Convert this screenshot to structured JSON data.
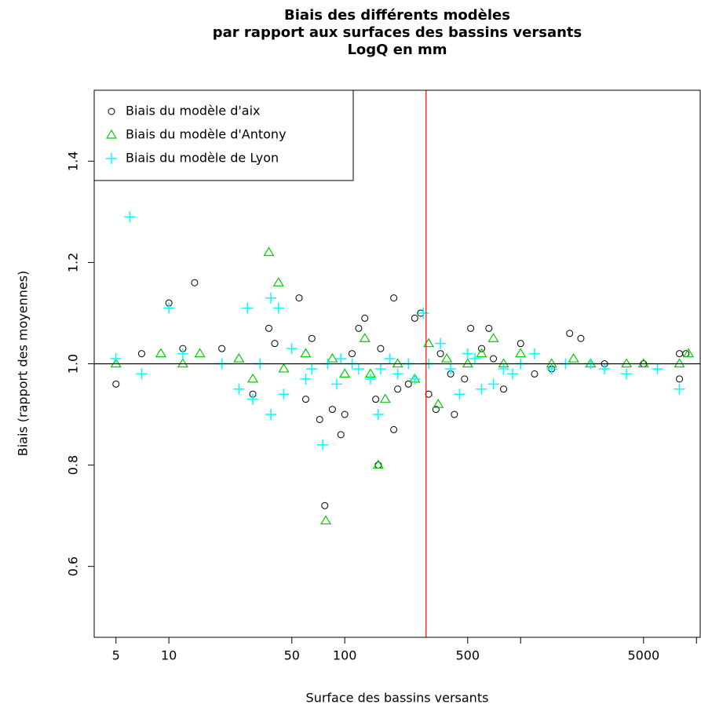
{
  "chart_data": {
    "type": "scatter",
    "title": [
      "Biais des différents modèles",
      "par rapport aux surfaces des bassins versants",
      "LogQ en mm"
    ],
    "x_label": "Surface des bassins versants",
    "y_label": "Biais (rapport des moyennes)",
    "x_scale": "log",
    "xlim": [
      3.76,
      10500
    ],
    "ylim": [
      0.46,
      1.54
    ],
    "xticks": [
      5,
      10,
      50,
      100,
      500,
      {
        "value": 1000,
        "label": null
      },
      5000,
      {
        "value": 10000,
        "label": null
      }
    ],
    "yticks": [
      0.6,
      0.8,
      {
        "value": 1,
        "label": "1.0"
      },
      1.2,
      1.4
    ],
    "legend": "top-left",
    "reference_lines": [
      {
        "axis": "x",
        "value": 290,
        "color": "#ff0000"
      },
      {
        "axis": "y",
        "value": 1,
        "color": "#000000"
      }
    ],
    "series": [
      {
        "name": "Biais du modèle d'aix",
        "marker": "circle",
        "color": "#000000",
        "x": [
          5,
          10,
          14,
          37,
          55,
          77,
          72,
          85,
          95,
          120,
          130,
          150,
          155,
          190,
          190,
          250,
          270,
          300,
          330,
          420,
          520,
          660,
          1000,
          1900,
          2200,
          5000,
          8000,
          8700,
          8000,
          7,
          12,
          20,
          30,
          60,
          100,
          200,
          400,
          600,
          800,
          1500,
          3000,
          40,
          65,
          110,
          160,
          230,
          350,
          480,
          700,
          1200
        ],
        "values": [
          0.96,
          1.12,
          1.16,
          1.07,
          1.13,
          0.72,
          0.89,
          0.91,
          0.86,
          1.07,
          1.09,
          0.93,
          0.8,
          0.87,
          1.13,
          1.09,
          1.1,
          0.94,
          0.91,
          0.9,
          1.07,
          1.07,
          1.04,
          1.06,
          1.05,
          1.0,
          1.02,
          1.02,
          0.97,
          1.02,
          1.03,
          1.03,
          0.94,
          0.93,
          0.9,
          0.95,
          0.98,
          1.03,
          0.95,
          0.99,
          1.0,
          1.04,
          1.05,
          1.02,
          1.03,
          0.96,
          1.02,
          0.97,
          1.01,
          0.98
        ]
      },
      {
        "name": "Biais du modèle d'Antony",
        "marker": "triangle",
        "color": "#00cc00",
        "x": [
          37,
          42,
          78,
          155,
          5,
          9,
          15,
          30,
          130,
          170,
          300,
          340,
          700,
          1000,
          2000,
          4000,
          5000,
          8000,
          9000,
          60,
          100,
          200,
          500,
          250,
          800,
          2500,
          12,
          25,
          45,
          85,
          140,
          380,
          600,
          1500
        ],
        "values": [
          1.22,
          1.16,
          0.69,
          0.8,
          1.0,
          1.02,
          1.02,
          0.97,
          1.05,
          0.93,
          1.04,
          0.92,
          1.05,
          1.02,
          1.01,
          1.0,
          1.0,
          1.0,
          1.02,
          1.02,
          0.98,
          1.0,
          1.0,
          0.97,
          1.0,
          1.0,
          1.0,
          1.01,
          0.99,
          1.01,
          0.98,
          1.01,
          1.02,
          1.0
        ]
      },
      {
        "name": "Biais du modèle de Lyon",
        "marker": "plus",
        "color": "#00ffff",
        "x": [
          6,
          10,
          28,
          38,
          42,
          75,
          38,
          30,
          155,
          5,
          7,
          12,
          20,
          25,
          45,
          60,
          90,
          110,
          140,
          200,
          280,
          350,
          450,
          600,
          900,
          1200,
          3000,
          4000,
          8000,
          50,
          80,
          300,
          500,
          700,
          1800,
          250,
          120,
          180,
          33,
          65,
          95,
          160,
          230,
          400,
          550,
          800,
          1000,
          1500,
          2500,
          6000
        ],
        "values": [
          1.29,
          1.11,
          1.11,
          1.13,
          1.11,
          0.84,
          0.9,
          0.93,
          0.9,
          1.01,
          0.98,
          1.02,
          1.0,
          0.95,
          0.94,
          0.97,
          0.96,
          1.0,
          0.97,
          0.98,
          1.1,
          1.04,
          0.94,
          0.95,
          0.98,
          1.02,
          0.99,
          0.98,
          0.95,
          1.03,
          1.0,
          1.0,
          1.02,
          0.96,
          1.0,
          0.97,
          0.99,
          1.01,
          1.0,
          0.99,
          1.01,
          0.99,
          1.0,
          0.99,
          1.01,
          0.99,
          1.0,
          0.99,
          1.0,
          0.99
        ]
      }
    ]
  }
}
